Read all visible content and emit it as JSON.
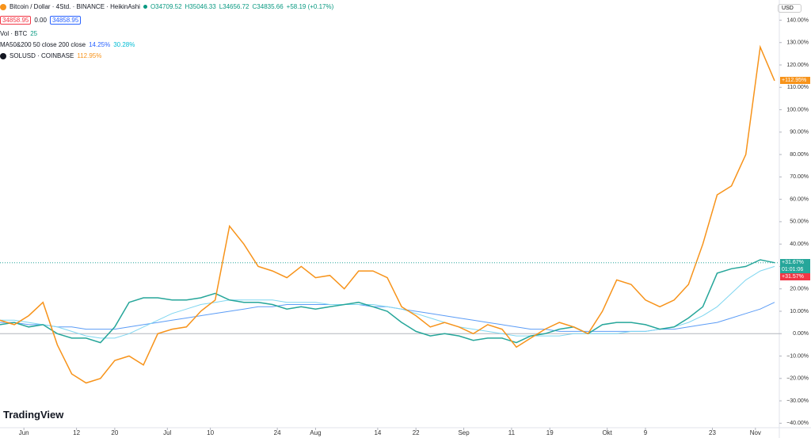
{
  "chart_data": {
    "type": "line",
    "symbol": "Bitcoin / Dollar · 4Std. · BINANCE · HeikinAshi",
    "ohlc": [
      "O34709.52",
      "H35046.33",
      "L34656.72",
      "C34835.66",
      "+58.19 (+0.17%)"
    ],
    "price_boxes": [
      "34858.95",
      "0.00",
      "34858.95"
    ],
    "volume_legend": [
      "Vol · BTC",
      "25"
    ],
    "ma_legend": [
      "MA50&200 50 close 200 close",
      "14.25%",
      "30.28%"
    ],
    "compare_legend": [
      "SOLUSD · COINBASE",
      "112.95%"
    ],
    "currency": "USD",
    "countdown": "01:01:06",
    "logo": "TradingView",
    "x": [
      -5,
      -2,
      1,
      4,
      7,
      10,
      13,
      16,
      19,
      22,
      25,
      28,
      31,
      34,
      37,
      40,
      43,
      46,
      49,
      52,
      55,
      58,
      61,
      64,
      67,
      70,
      73,
      76,
      79,
      82,
      85,
      88,
      91,
      94,
      97,
      100,
      103,
      106,
      109,
      112,
      115,
      118,
      121,
      124,
      127,
      130,
      133,
      136,
      139,
      142,
      145,
      148,
      151,
      154,
      157
    ],
    "xlim": [
      -5,
      158
    ],
    "xticks": [
      {
        "value": 0,
        "label": "Jun"
      },
      {
        "value": 11,
        "label": "12"
      },
      {
        "value": 19,
        "label": "20"
      },
      {
        "value": 30,
        "label": "Jul"
      },
      {
        "value": 39,
        "label": "10"
      },
      {
        "value": 53,
        "label": "24"
      },
      {
        "value": 61,
        "label": "Aug"
      },
      {
        "value": 74,
        "label": "14"
      },
      {
        "value": 82,
        "label": "22"
      },
      {
        "value": 92,
        "label": "Sep"
      },
      {
        "value": 102,
        "label": "11"
      },
      {
        "value": 110,
        "label": "19"
      },
      {
        "value": 122,
        "label": "Okt"
      },
      {
        "value": 130,
        "label": "9"
      },
      {
        "value": 144,
        "label": "23"
      },
      {
        "value": 153,
        "label": "Nov"
      }
    ],
    "ylim": [
      -42,
      149
    ],
    "yticks": [
      {
        "value": 140,
        "label": "140.00%"
      },
      {
        "value": 130,
        "label": "130.00%"
      },
      {
        "value": 120,
        "label": "120.00%"
      },
      {
        "value": 110,
        "label": "110.00%"
      },
      {
        "value": 100,
        "label": "100.00%"
      },
      {
        "value": 90,
        "label": "90.00%"
      },
      {
        "value": 80,
        "label": "80.00%"
      },
      {
        "value": 70,
        "label": "70.00%"
      },
      {
        "value": 60,
        "label": "60.00%"
      },
      {
        "value": 50,
        "label": "50.00%"
      },
      {
        "value": 40,
        "label": "40.00%"
      },
      {
        "value": 30,
        "label": "30.00%"
      },
      {
        "value": 20,
        "label": "20.00%"
      },
      {
        "value": 10,
        "label": "10.00%"
      },
      {
        "value": 0,
        "label": "0.00%"
      },
      {
        "value": -10,
        "label": "−10.00%"
      },
      {
        "value": -20,
        "label": "−20.00%"
      },
      {
        "value": -30,
        "label": "−30.00%"
      },
      {
        "value": -40,
        "label": "−40.00%"
      }
    ],
    "series": [
      {
        "name": "MA200",
        "color": "#5b9cf6",
        "values": [
          5,
          5,
          4,
          4,
          3,
          3,
          2,
          2,
          2,
          3,
          4,
          5,
          6,
          7,
          8,
          9,
          10,
          11,
          12,
          12,
          13,
          13,
          13,
          13,
          13,
          13,
          12,
          12,
          11,
          10,
          9,
          8,
          7,
          6,
          5,
          4,
          3,
          2,
          2,
          1,
          1,
          1,
          1,
          1,
          1,
          1,
          2,
          2,
          3,
          4,
          5,
          7,
          9,
          11,
          14
        ]
      },
      {
        "name": "MA50",
        "color": "#7fd6f0",
        "values": [
          6,
          6,
          5,
          4,
          3,
          1,
          -1,
          -2,
          -2,
          0,
          3,
          6,
          9,
          11,
          13,
          14,
          15,
          15,
          15,
          15,
          14,
          14,
          14,
          13,
          13,
          13,
          13,
          12,
          11,
          9,
          7,
          5,
          3,
          2,
          1,
          0,
          -1,
          -1,
          -1,
          -1,
          0,
          0,
          0,
          0,
          1,
          1,
          2,
          3,
          5,
          8,
          12,
          18,
          24,
          28,
          30
        ]
      },
      {
        "name": "BTCUSD",
        "color": "#26a69a",
        "values": [
          4,
          5,
          3,
          4,
          0,
          -2,
          -2,
          -4,
          3,
          14,
          16,
          16,
          15,
          15,
          16,
          18,
          15,
          14,
          14,
          13,
          11,
          12,
          11,
          12,
          13,
          14,
          12,
          10,
          5,
          1,
          -1,
          0,
          -1,
          -3,
          -2,
          -2,
          -4,
          -1,
          0,
          2,
          3,
          0,
          4,
          5,
          5,
          4,
          2,
          3,
          7,
          12,
          27,
          29,
          30,
          33,
          31.67
        ],
        "last_label": {
          "value": 31.67,
          "label": "+31.67%"
        }
      },
      {
        "name": "SOLUSD",
        "color": "#f7931a",
        "values": [
          6,
          4,
          8,
          14,
          -5,
          -18,
          -22,
          -20,
          -12,
          -10,
          -14,
          0,
          2,
          3,
          10,
          15,
          48,
          40,
          30,
          28,
          25,
          30,
          25,
          26,
          20,
          28,
          28,
          25,
          12,
          8,
          3,
          5,
          3,
          0,
          4,
          2,
          -6,
          -2,
          2,
          5,
          3,
          0,
          10,
          24,
          22,
          15,
          12,
          15,
          22,
          40,
          62,
          66,
          80,
          128,
          112.95
        ],
        "last_label": {
          "value": 112.95,
          "label": "+112.95%"
        }
      }
    ],
    "price_line": {
      "value": 31.57,
      "label": "+31.57%"
    }
  }
}
